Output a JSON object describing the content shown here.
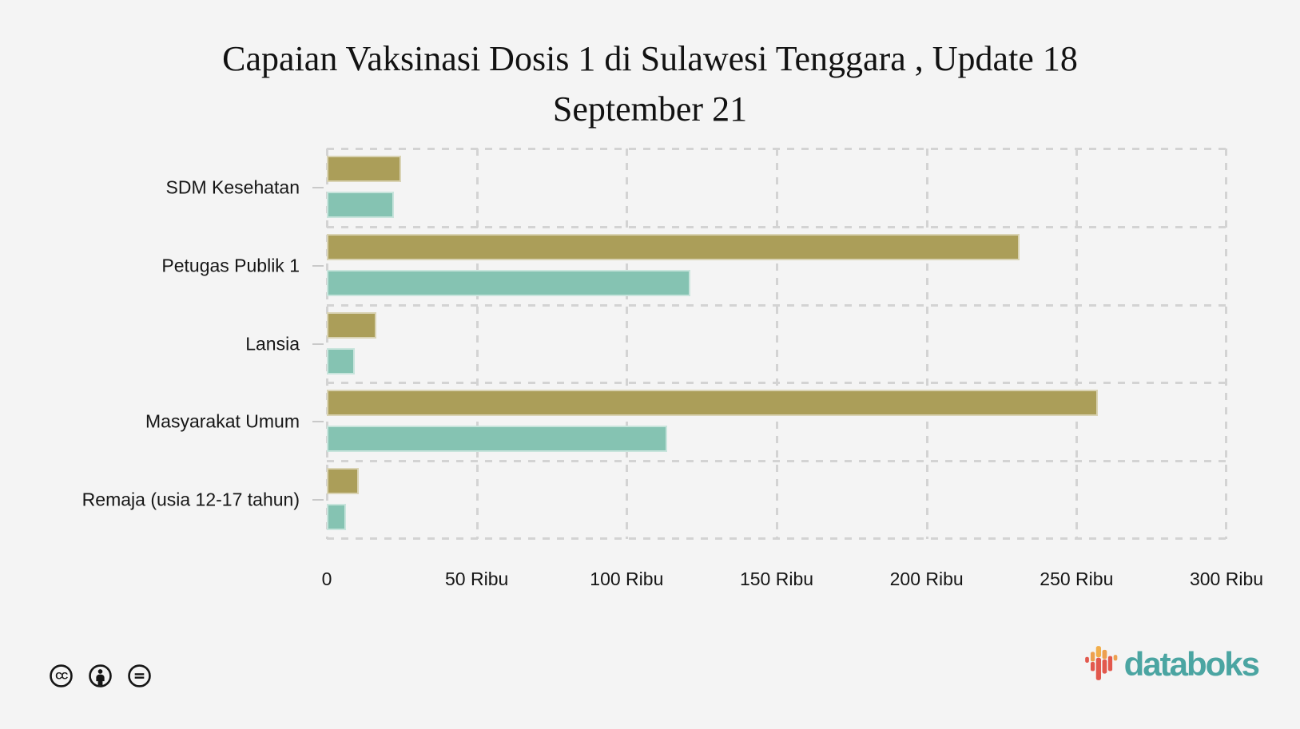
{
  "title": {
    "text": "Capaian Vaksinasi Dosis 1 di Sulawesi Tenggara , Update 18 September 21",
    "line1": "Capaian Vaksinasi Dosis 1 di Sulawesi Tenggara , Update 18",
    "line2": "September 21"
  },
  "chart_data": {
    "type": "bar",
    "orientation": "horizontal",
    "title": "Capaian Vaksinasi Dosis 1 di Sulawesi Tenggara , Update 18 September 21",
    "categories": [
      "SDM Kesehatan",
      "Petugas Publik 1",
      "Lansia",
      "Masyarakat Umum",
      "Remaja (usia 12-17 tahun)"
    ],
    "series": [
      {
        "name": "olive",
        "color": "#ab9e59",
        "values": [
          24900,
          231000,
          16500,
          257000,
          10700
        ]
      },
      {
        "name": "teal",
        "color": "#85c3b2",
        "values": [
          22400,
          121200,
          9300,
          113400,
          6300
        ]
      }
    ],
    "xlabel": "",
    "ylabel": "",
    "xlim": [
      0,
      300000
    ],
    "x_tick_labels": [
      "0",
      "50 Ribu",
      "100 Ribu",
      "150 Ribu",
      "200 Ribu",
      "250 Ribu",
      "300 Ribu"
    ],
    "x_tick_values": [
      0,
      50000,
      100000,
      150000,
      200000,
      250000,
      300000
    ],
    "grid": "dashed",
    "legend": "none"
  },
  "footer": {
    "license_icons": [
      "cc-icon",
      "attribution-icon",
      "no-derivatives-icon"
    ],
    "brand": "databoks",
    "brand_color": "#4ba5a2",
    "logo_colors": {
      "red": "#e2584d",
      "orange": "#eda04f",
      "yellow": "#f2ae4b"
    }
  },
  "colors": {
    "background": "#f4f4f4",
    "grid": "#d3d3d3",
    "text": "#161616",
    "icon": "#161616"
  }
}
